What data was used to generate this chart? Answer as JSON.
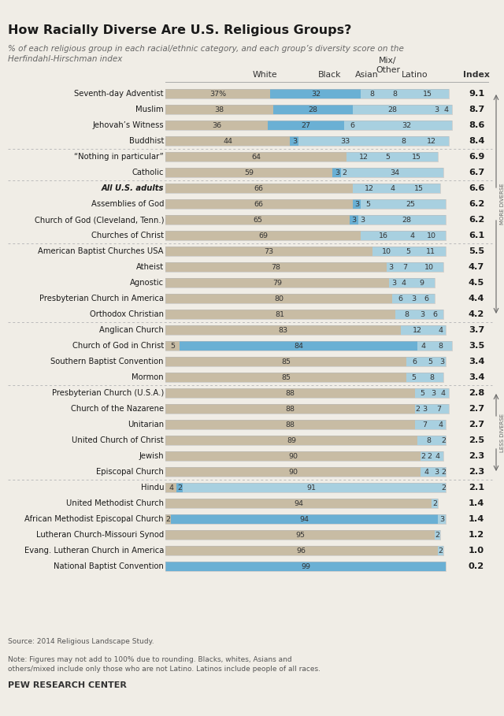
{
  "title": "How Racially Diverse Are U.S. Religious Groups?",
  "subtitle": "% of each religious group in each racial/ethnic category, and each group’s diversity score on the\nHerfindahl-Hirschman index",
  "source": "Source: 2014 Religious Landscape Study.",
  "note": "Note: Figures may not add to 100% due to rounding. Blacks, whites, Asians and\nothers/mixed include only those who are not Latino. Latinos include people of all races.",
  "footer": "PEW RESEARCH CENTER",
  "groups": [
    {
      "name": "Seventh-day Adventist",
      "white": 37,
      "black": 32,
      "asian": 8,
      "mix": 8,
      "latino": 15,
      "index": "9.1",
      "bold": false
    },
    {
      "name": "Muslim",
      "white": 38,
      "black": 28,
      "asian": 28,
      "mix": 3,
      "latino": 4,
      "index": "8.7",
      "bold": false
    },
    {
      "name": "Jehovah’s Witness",
      "white": 36,
      "black": 27,
      "asian": 6,
      "mix": 0,
      "latino": 32,
      "index": "8.6",
      "bold": false
    },
    {
      "name": "Buddhist",
      "white": 44,
      "black": 3,
      "asian": 33,
      "mix": 8,
      "latino": 12,
      "index": "8.4",
      "bold": false
    },
    {
      "name": "“Nothing in particular”",
      "white": 64,
      "black": 0,
      "asian": 12,
      "mix": 5,
      "latino": 15,
      "index": "6.9",
      "bold": false
    },
    {
      "name": "Catholic",
      "white": 59,
      "black": 3,
      "asian": 2,
      "mix": 0,
      "latino": 34,
      "index": "6.7",
      "bold": false
    },
    {
      "name": "All U.S. adults",
      "white": 66,
      "black": 0,
      "asian": 12,
      "mix": 4,
      "latino": 15,
      "index": "6.6",
      "bold": true
    },
    {
      "name": "Assemblies of God",
      "white": 66,
      "black": 3,
      "asian": 5,
      "mix": 0,
      "latino": 25,
      "index": "6.2",
      "bold": false
    },
    {
      "name": "Church of God (Cleveland, Tenn.)",
      "white": 65,
      "black": 3,
      "asian": 3,
      "mix": 0,
      "latino": 28,
      "index": "6.2",
      "bold": false
    },
    {
      "name": "Churches of Christ",
      "white": 69,
      "black": 0,
      "asian": 16,
      "mix": 4,
      "latino": 10,
      "index": "6.1",
      "bold": false
    },
    {
      "name": "American Baptist Churches USA",
      "white": 73,
      "black": 0,
      "asian": 10,
      "mix": 5,
      "latino": 11,
      "index": "5.5",
      "bold": false
    },
    {
      "name": "Atheist",
      "white": 78,
      "black": 0,
      "asian": 3,
      "mix": 7,
      "latino": 10,
      "index": "4.7",
      "bold": false
    },
    {
      "name": "Agnostic",
      "white": 79,
      "black": 0,
      "asian": 3,
      "mix": 4,
      "latino": 9,
      "index": "4.5",
      "bold": false
    },
    {
      "name": "Presbyterian Church in America",
      "white": 80,
      "black": 0,
      "asian": 6,
      "mix": 3,
      "latino": 6,
      "index": "4.4",
      "bold": false
    },
    {
      "name": "Orthodox Christian",
      "white": 81,
      "black": 0,
      "asian": 8,
      "mix": 3,
      "latino": 6,
      "index": "4.2",
      "bold": false
    },
    {
      "name": "Anglican Church",
      "white": 83,
      "black": 0,
      "asian": 12,
      "mix": 0,
      "latino": 4,
      "index": "3.7",
      "bold": false
    },
    {
      "name": "Church of God in Christ",
      "white": 5,
      "black": 84,
      "asian": 0,
      "mix": 4,
      "latino": 8,
      "index": "3.5",
      "bold": false
    },
    {
      "name": "Southern Baptist Convention",
      "white": 85,
      "black": 0,
      "asian": 6,
      "mix": 5,
      "latino": 3,
      "index": "3.4",
      "bold": false
    },
    {
      "name": "Mormon",
      "white": 85,
      "black": 0,
      "asian": 5,
      "mix": 0,
      "latino": 8,
      "index": "3.4",
      "bold": false
    },
    {
      "name": "Presbyterian Church (U.S.A.)",
      "white": 88,
      "black": 0,
      "asian": 5,
      "mix": 3,
      "latino": 4,
      "index": "2.8",
      "bold": false
    },
    {
      "name": "Church of the Nazarene",
      "white": 88,
      "black": 0,
      "asian": 2,
      "mix": 3,
      "latino": 7,
      "index": "2.7",
      "bold": false
    },
    {
      "name": "Unitarian",
      "white": 88,
      "black": 0,
      "asian": 7,
      "mix": 0,
      "latino": 4,
      "index": "2.7",
      "bold": false
    },
    {
      "name": "United Church of Christ",
      "white": 89,
      "black": 0,
      "asian": 8,
      "mix": 0,
      "latino": 2,
      "index": "2.5",
      "bold": false
    },
    {
      "name": "Jewish",
      "white": 90,
      "black": 0,
      "asian": 2,
      "mix": 2,
      "latino": 4,
      "index": "2.3",
      "bold": false
    },
    {
      "name": "Episcopal Church",
      "white": 90,
      "black": 0,
      "asian": 4,
      "mix": 3,
      "latino": 2,
      "index": "2.3",
      "bold": false
    },
    {
      "name": "Hindu",
      "white": 4,
      "black": 2,
      "asian": 91,
      "mix": 0,
      "latino": 2,
      "index": "2.1",
      "bold": false
    },
    {
      "name": "United Methodist Church",
      "white": 94,
      "black": 0,
      "asian": 0,
      "mix": 0,
      "latino": 2,
      "index": "1.4",
      "bold": false
    },
    {
      "name": "African Methodist Episcopal Church",
      "white": 2,
      "black": 94,
      "asian": 0,
      "mix": 0,
      "latino": 3,
      "index": "1.4",
      "bold": false
    },
    {
      "name": "Lutheran Church-Missouri Synod",
      "white": 95,
      "black": 0,
      "asian": 0,
      "mix": 0,
      "latino": 2,
      "index": "1.2",
      "bold": false
    },
    {
      "name": "Evang. Lutheran Church in America",
      "white": 96,
      "black": 0,
      "asian": 0,
      "mix": 0,
      "latino": 2,
      "index": "1.0",
      "bold": false
    },
    {
      "name": "National Baptist Convention",
      "white": 0,
      "black": 99,
      "asian": 0,
      "mix": 0,
      "latino": 0,
      "index": "0.2",
      "bold": false
    }
  ],
  "colors": {
    "white_bar": "#c8bca4",
    "black_bar": "#6ab0d4",
    "asian_bar": "#a8d0e0",
    "mix_bar": "#a8d0e0",
    "latino_bar": "#a8d0e0",
    "bg": "#f0ede6"
  },
  "dividers_after": [
    3,
    5,
    9,
    14,
    18,
    24
  ],
  "more_diverse_rows": [
    0,
    14
  ],
  "less_diverse_rows": [
    19,
    24
  ]
}
